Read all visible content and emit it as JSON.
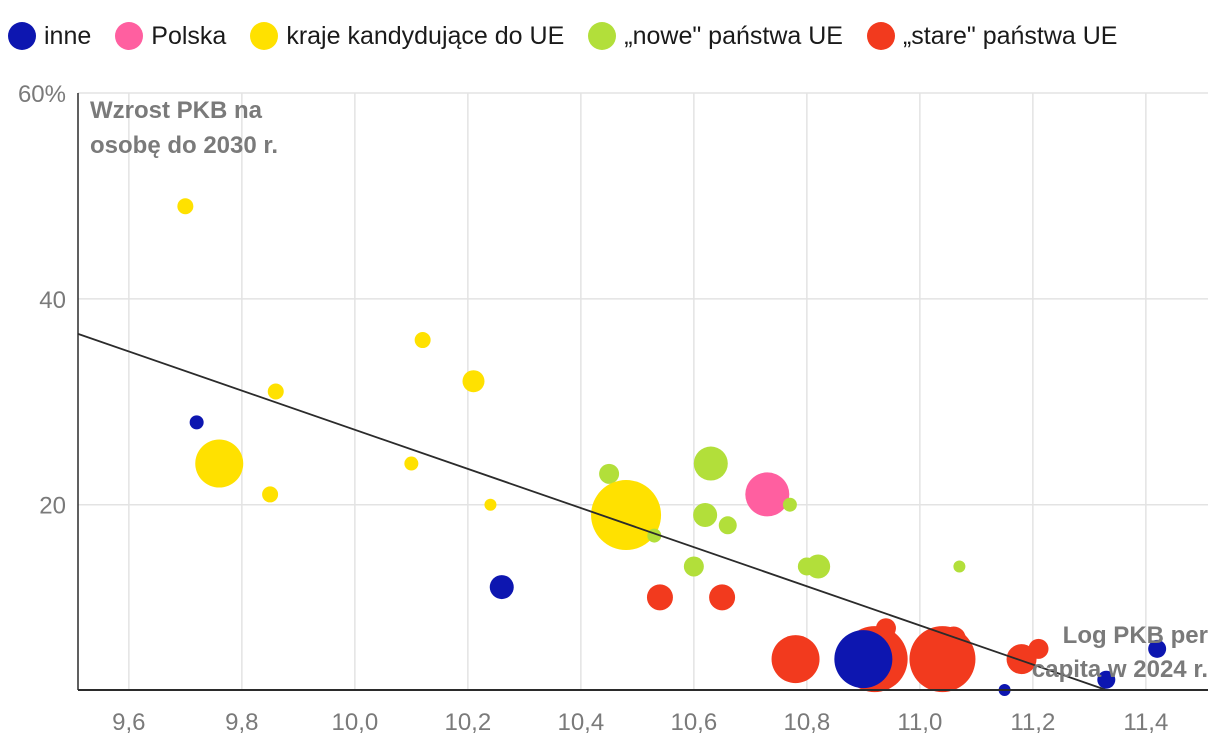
{
  "legend": [
    {
      "key": "inne",
      "label": "inne",
      "color": "#0d16b0"
    },
    {
      "key": "polska",
      "label": "Polska",
      "color": "#ff5fa0"
    },
    {
      "key": "kandydujace",
      "label": "kraje kandydujące do UE",
      "color": "#ffe100"
    },
    {
      "key": "nowe",
      "label": "„nowe\" państwa UE",
      "color": "#b2df3a"
    },
    {
      "key": "stare",
      "label": "„stare\" państwa UE",
      "color": "#f23a1e"
    }
  ],
  "chart_data": {
    "type": "scatter",
    "ylabel_lines": [
      "Wzrost PKB na",
      "osobę do 2030 r."
    ],
    "xlabel_lines": [
      "Log PKB per",
      "capita w 2024 r."
    ],
    "xlim": [
      9.51,
      11.51
    ],
    "ylim": [
      2,
      60
    ],
    "x_ticks": [
      9.6,
      9.8,
      10.0,
      10.2,
      10.4,
      10.6,
      10.8,
      11.0,
      11.2,
      11.4
    ],
    "x_tick_labels": [
      "9,6",
      "9,8",
      "10,0",
      "10,2",
      "10,4",
      "10,6",
      "10,8",
      "11,0",
      "11,2",
      "11,4"
    ],
    "y_ticks": [
      20,
      40,
      60
    ],
    "y_tick_labels": [
      "20",
      "40",
      "60%"
    ],
    "trendline": {
      "x": [
        9.51,
        11.33
      ],
      "y": [
        36.6,
        2.0
      ]
    },
    "points": [
      {
        "x": 9.7,
        "y": 49.0,
        "size": 8,
        "group": "kandydujace"
      },
      {
        "x": 9.72,
        "y": 28.0,
        "size": 7,
        "group": "inne"
      },
      {
        "x": 9.76,
        "y": 24.0,
        "size": 24,
        "group": "kandydujace"
      },
      {
        "x": 9.85,
        "y": 21.0,
        "size": 8,
        "group": "kandydujace"
      },
      {
        "x": 9.86,
        "y": 31.0,
        "size": 8,
        "group": "kandydujace"
      },
      {
        "x": 10.1,
        "y": 24.0,
        "size": 7,
        "group": "kandydujace"
      },
      {
        "x": 10.12,
        "y": 36.0,
        "size": 8,
        "group": "kandydujace"
      },
      {
        "x": 10.21,
        "y": 32.0,
        "size": 11,
        "group": "kandydujace"
      },
      {
        "x": 10.24,
        "y": 20.0,
        "size": 6,
        "group": "kandydujace"
      },
      {
        "x": 10.26,
        "y": 12.0,
        "size": 12,
        "group": "inne"
      },
      {
        "x": 10.45,
        "y": 23.0,
        "size": 10,
        "group": "nowe"
      },
      {
        "x": 10.48,
        "y": 19.0,
        "size": 35,
        "group": "kandydujace"
      },
      {
        "x": 10.53,
        "y": 17.0,
        "size": 7,
        "group": "nowe"
      },
      {
        "x": 10.54,
        "y": 11.0,
        "size": 13,
        "group": "stare"
      },
      {
        "x": 10.6,
        "y": 14.0,
        "size": 10,
        "group": "nowe"
      },
      {
        "x": 10.62,
        "y": 19.0,
        "size": 12,
        "group": "nowe"
      },
      {
        "x": 10.63,
        "y": 24.0,
        "size": 17,
        "group": "nowe"
      },
      {
        "x": 10.65,
        "y": 11.0,
        "size": 13,
        "group": "stare"
      },
      {
        "x": 10.66,
        "y": 18.0,
        "size": 9,
        "group": "nowe"
      },
      {
        "x": 10.73,
        "y": 21.0,
        "size": 22,
        "group": "polska"
      },
      {
        "x": 10.77,
        "y": 20.0,
        "size": 7,
        "group": "nowe"
      },
      {
        "x": 10.78,
        "y": 5.0,
        "size": 24,
        "group": "stare"
      },
      {
        "x": 10.8,
        "y": 14.0,
        "size": 9,
        "group": "nowe"
      },
      {
        "x": 10.82,
        "y": 14.0,
        "size": 12,
        "group": "nowe"
      },
      {
        "x": 10.92,
        "y": 5.0,
        "size": 33,
        "group": "stare"
      },
      {
        "x": 10.94,
        "y": 8.0,
        "size": 10,
        "group": "stare"
      },
      {
        "x": 10.9,
        "y": 5.0,
        "size": 29,
        "group": "inne"
      },
      {
        "x": 11.04,
        "y": 5.0,
        "size": 33,
        "group": "stare"
      },
      {
        "x": 11.06,
        "y": 7.0,
        "size": 12,
        "group": "stare"
      },
      {
        "x": 11.07,
        "y": 14.0,
        "size": 6,
        "group": "nowe"
      },
      {
        "x": 11.15,
        "y": 2.0,
        "size": 6,
        "group": "inne"
      },
      {
        "x": 11.18,
        "y": 5.0,
        "size": 15,
        "group": "stare"
      },
      {
        "x": 11.21,
        "y": 6.0,
        "size": 10,
        "group": "stare"
      },
      {
        "x": 11.33,
        "y": 3.0,
        "size": 9,
        "group": "inne"
      },
      {
        "x": 11.42,
        "y": 6.0,
        "size": 9,
        "group": "inne"
      }
    ]
  }
}
